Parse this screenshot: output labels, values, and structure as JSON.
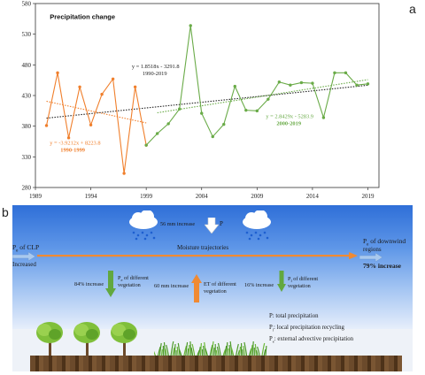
{
  "panel_a": {
    "letter": "a",
    "chart_data": {
      "type": "line",
      "title": "Precipitation change",
      "xlim": [
        1989,
        2020
      ],
      "ylim": [
        280,
        580
      ],
      "x_ticks": [
        "1989",
        "1994",
        "1999",
        "2004",
        "2009",
        "2014",
        "2019"
      ],
      "y_ticks": [
        "280",
        "330",
        "380",
        "430",
        "480",
        "530",
        "580"
      ],
      "grid": false,
      "series": [
        {
          "period": "1990-1999",
          "color": "#f07f2c",
          "x": [
            1990,
            1991,
            1992,
            1993,
            1994,
            1995,
            1996,
            1997,
            1998,
            1999
          ],
          "values": [
            381,
            467,
            361,
            444,
            382,
            432,
            457,
            303,
            444,
            349
          ]
        },
        {
          "period": "2000-2019",
          "color": "#6aab48",
          "x": [
            1999,
            2000,
            2001,
            2002,
            2003,
            2004,
            2005,
            2006,
            2007,
            2008,
            2009,
            2010,
            2011,
            2012,
            2013,
            2014,
            2015,
            2016,
            2017,
            2018,
            2019
          ],
          "values": [
            349,
            368,
            384,
            408,
            544,
            401,
            363,
            383,
            445,
            406,
            405,
            424,
            452,
            447,
            451,
            450,
            394,
            467,
            467,
            447,
            449
          ]
        }
      ],
      "trendlines": [
        {
          "id": "all",
          "equation": "y = 1.8518x - 3291.8",
          "period": "1990-2019",
          "color": "#222222",
          "x": [
            1990,
            2019
          ],
          "y": [
            393.1,
            446.8
          ]
        },
        {
          "id": "early",
          "equation": "y = -3.9212x + 8223.8",
          "period": "1990-1999",
          "color": "#f07f2c",
          "x": [
            1990,
            1999
          ],
          "y": [
            420.6,
            385.3
          ]
        },
        {
          "id": "late",
          "equation": "y = 2.8429x - 5283.9",
          "period": "2000-2019",
          "color": "#6aab48",
          "x": [
            2000,
            2019
          ],
          "y": [
            401.9,
            455.9
          ]
        }
      ]
    }
  },
  "panel_b": {
    "letter": "b",
    "increase_p": "56 mm increase",
    "p_label": "P",
    "pe_left": "P",
    "pe_left_sub": "e",
    "pe_left_rest": "of CLP",
    "increased": "Increased",
    "pe_right": "P",
    "pe_right_sub": "e",
    "pe_right_rest": "of downwind",
    "regions": "regions",
    "increase_79": "79% increase",
    "moisture": "Moisture trajectories",
    "pe_increase": "84% increase",
    "pe_veg_sym": "P",
    "pe_veg_sub": "e",
    "pe_veg_rest": "of different",
    "pe_veg_line2": "vegetation",
    "et_increase": "60 mm increase",
    "et_label": "ET of different",
    "et_line2": "vegetation",
    "pl_increase": "16% increase",
    "pl_sym": "P",
    "pl_sub": "l",
    "pl_rest": "of different",
    "pl_line2": "vegetation",
    "legend": [
      {
        "sym": "P",
        "sub": "",
        "text": ": total precipitation"
      },
      {
        "sym": "P",
        "sub": "l",
        "text": ": local precipitation recycling"
      },
      {
        "sym": "P",
        "sub": "e",
        "text": ": external advective precipitation"
      }
    ]
  }
}
